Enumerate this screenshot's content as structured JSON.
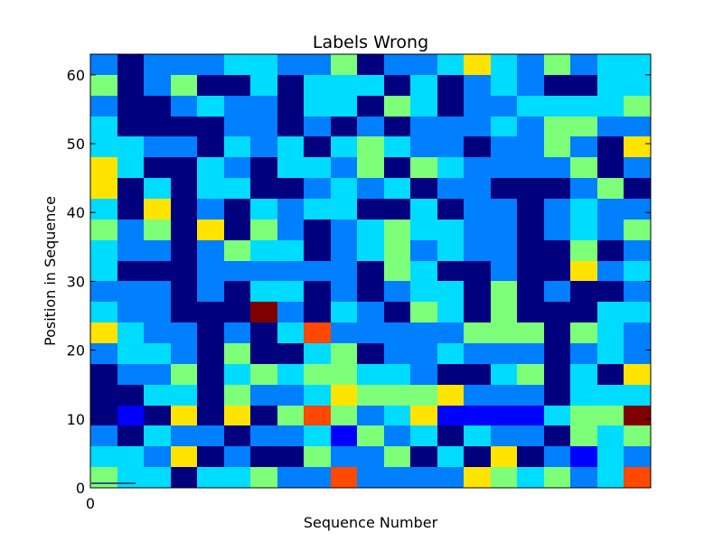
{
  "chart_data": {
    "type": "heatmap",
    "title": "Labels Wrong",
    "xlabel": "Sequence Number",
    "ylabel": "Position in Sequence",
    "xlim": [
      0,
      31
    ],
    "ylim": [
      0,
      63
    ],
    "x_ticks": [
      0
    ],
    "y_ticks": [
      0,
      10,
      20,
      30,
      40,
      50,
      60
    ],
    "colormap": [
      "#00007f",
      "#0000ff",
      "#007fff",
      "#00dcff",
      "#7dff7a",
      "#ffe400",
      "#ff4800",
      "#7f0000"
    ],
    "cell_height": 3,
    "grid": false,
    "legend": "none",
    "values": [
      [
        4,
        3,
        3,
        0,
        3,
        3,
        4,
        2,
        2,
        6,
        2,
        2,
        2,
        2,
        5,
        4,
        3,
        4,
        2,
        3,
        6
      ],
      [
        3,
        3,
        2,
        5,
        0,
        2,
        0,
        0,
        4,
        2,
        2,
        4,
        0,
        3,
        0,
        5,
        0,
        2,
        1,
        3,
        2
      ],
      [
        2,
        0,
        3,
        2,
        2,
        0,
        2,
        2,
        3,
        1,
        4,
        2,
        3,
        0,
        3,
        2,
        2,
        0,
        4,
        3,
        4
      ],
      [
        0,
        1,
        0,
        5,
        0,
        5,
        0,
        4,
        6,
        4,
        2,
        3,
        5,
        1,
        1,
        1,
        1,
        3,
        4,
        4,
        7
      ],
      [
        0,
        0,
        3,
        3,
        0,
        4,
        2,
        2,
        3,
        5,
        4,
        4,
        4,
        5,
        2,
        2,
        2,
        0,
        3,
        3,
        3
      ],
      [
        0,
        2,
        2,
        4,
        0,
        3,
        4,
        3,
        4,
        4,
        3,
        3,
        2,
        0,
        0,
        3,
        4,
        0,
        3,
        0,
        5
      ],
      [
        2,
        3,
        3,
        2,
        0,
        4,
        0,
        0,
        3,
        4,
        0,
        2,
        2,
        3,
        2,
        2,
        2,
        0,
        2,
        3,
        2
      ],
      [
        5,
        3,
        2,
        2,
        0,
        2,
        0,
        3,
        6,
        2,
        2,
        2,
        2,
        2,
        4,
        4,
        4,
        0,
        4,
        3,
        2
      ],
      [
        3,
        2,
        2,
        0,
        0,
        0,
        7,
        2,
        0,
        3,
        2,
        0,
        4,
        3,
        0,
        4,
        0,
        0,
        0,
        3,
        3
      ],
      [
        2,
        2,
        2,
        0,
        2,
        0,
        3,
        3,
        0,
        2,
        0,
        2,
        3,
        3,
        0,
        4,
        0,
        2,
        0,
        0,
        2
      ],
      [
        3,
        0,
        0,
        0,
        2,
        2,
        2,
        2,
        2,
        2,
        0,
        4,
        3,
        0,
        0,
        2,
        0,
        0,
        5,
        2,
        3
      ],
      [
        3,
        2,
        2,
        0,
        2,
        4,
        3,
        3,
        0,
        2,
        3,
        4,
        2,
        3,
        2,
        2,
        0,
        0,
        4,
        0,
        2
      ],
      [
        4,
        2,
        4,
        0,
        5,
        0,
        4,
        2,
        0,
        2,
        3,
        4,
        3,
        3,
        2,
        2,
        0,
        2,
        3,
        2,
        4
      ],
      [
        3,
        0,
        5,
        0,
        2,
        0,
        3,
        2,
        3,
        3,
        0,
        0,
        3,
        0,
        2,
        2,
        0,
        2,
        3,
        2,
        2
      ],
      [
        5,
        0,
        3,
        0,
        3,
        3,
        0,
        0,
        2,
        3,
        2,
        3,
        0,
        2,
        2,
        0,
        0,
        0,
        2,
        4,
        0
      ],
      [
        5,
        3,
        0,
        0,
        3,
        2,
        0,
        3,
        3,
        2,
        4,
        0,
        4,
        3,
        2,
        2,
        2,
        2,
        4,
        0,
        2
      ],
      [
        3,
        3,
        2,
        2,
        0,
        3,
        2,
        3,
        0,
        3,
        4,
        3,
        2,
        2,
        0,
        2,
        2,
        4,
        2,
        0,
        5
      ],
      [
        3,
        0,
        0,
        0,
        0,
        2,
        2,
        0,
        2,
        0,
        2,
        0,
        2,
        2,
        2,
        3,
        2,
        4,
        4,
        2,
        2
      ],
      [
        2,
        0,
        0,
        2,
        3,
        2,
        2,
        0,
        3,
        3,
        0,
        4,
        3,
        0,
        2,
        2,
        3,
        3,
        3,
        3,
        4
      ],
      [
        4,
        0,
        2,
        4,
        0,
        0,
        3,
        0,
        3,
        3,
        3,
        0,
        3,
        0,
        2,
        3,
        2,
        0,
        0,
        3,
        3
      ],
      [
        2,
        0,
        2,
        2,
        2,
        3,
        3,
        2,
        2,
        4,
        0,
        2,
        2,
        3,
        5,
        3,
        2,
        4,
        2,
        3,
        3
      ]
    ]
  }
}
